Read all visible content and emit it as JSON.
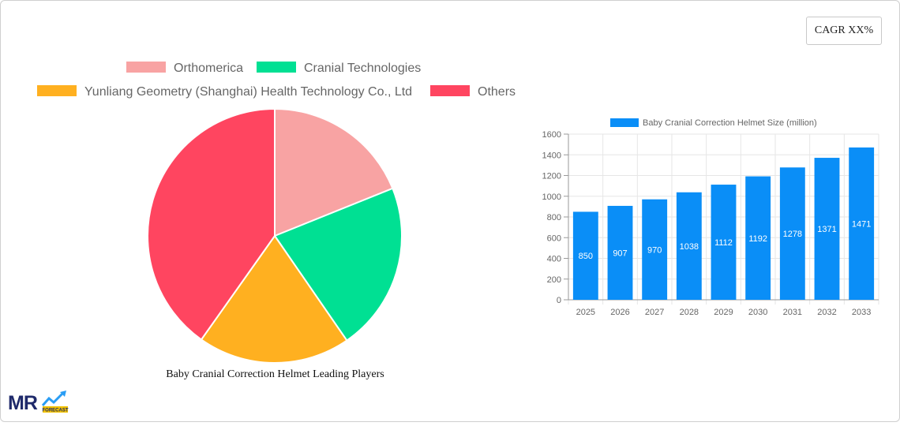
{
  "cagr_label": "CAGR XX%",
  "pie_title": "Baby Cranial Correction Helmet Leading Players",
  "logo": {
    "main": "MR",
    "sub": "FORECAST"
  },
  "colors": {
    "bar": "#0a8ef7",
    "grid": "#e6e6e6",
    "axis": "#666666"
  },
  "chart_data": [
    {
      "type": "pie",
      "title": "Baby Cranial Correction Helmet Leading Players",
      "legend_position": "top",
      "slices": [
        {
          "name": "Orthomerica",
          "value": 18.9,
          "color": "#f8a3a3"
        },
        {
          "name": "Cranial Technologies",
          "value": 21.5,
          "color": "#00e093"
        },
        {
          "name": "Yunliang Geometry (Shanghai) Health Technology Co., Ltd",
          "value": 19.4,
          "color": "#ffb020"
        },
        {
          "name": "Others",
          "value": 40.2,
          "color": "#ff4560"
        }
      ]
    },
    {
      "type": "bar",
      "categories": [
        "2025",
        "2026",
        "2027",
        "2028",
        "2029",
        "2030",
        "2031",
        "2032",
        "2033"
      ],
      "series": [
        {
          "name": "Baby Cranial Correction Helmet Size (million)",
          "values": [
            850,
            907,
            970,
            1038,
            1112,
            1192,
            1278,
            1371,
            1471
          ]
        }
      ],
      "ylim": [
        0,
        1600
      ],
      "yticks": [
        0,
        200,
        400,
        600,
        800,
        1000,
        1200,
        1400,
        1600
      ],
      "grid": true,
      "legend_position": "top",
      "data_labels": true
    }
  ]
}
